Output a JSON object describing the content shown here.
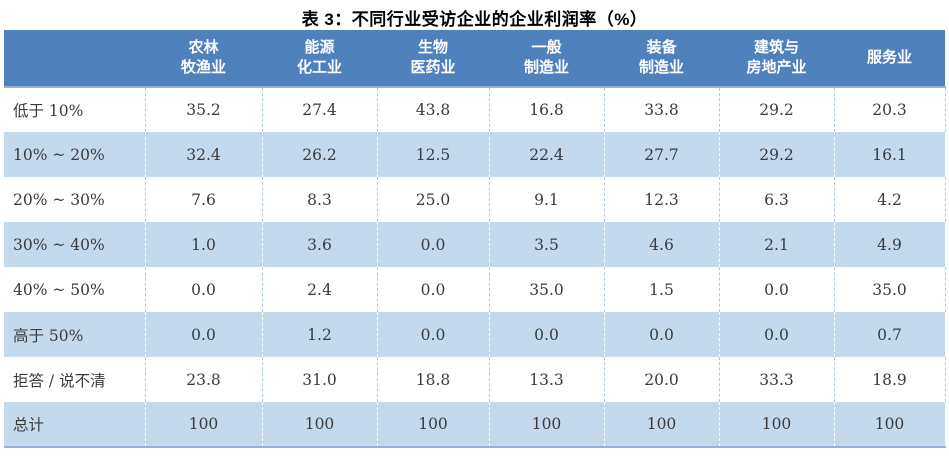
{
  "title": "表 3：不同行业受访企业的企业利润率（%）",
  "table": {
    "corner_label": "",
    "columns": [
      "农林\n牧渔业",
      "能源\n化工业",
      "生物\n医药业",
      "一般\n制造业",
      "装备\n制造业",
      "建筑与\n房地产业",
      "服务业"
    ],
    "rows": [
      {
        "label": "低于 10%",
        "values": [
          "35.2",
          "27.4",
          "43.8",
          "16.8",
          "33.8",
          "29.2",
          "20.3"
        ]
      },
      {
        "label": "10% ~ 20%",
        "values": [
          "32.4",
          "26.2",
          "12.5",
          "22.4",
          "27.7",
          "29.2",
          "16.1"
        ]
      },
      {
        "label": "20% ~ 30%",
        "values": [
          "7.6",
          "8.3",
          "25.0",
          "9.1",
          "12.3",
          "6.3",
          "4.2"
        ]
      },
      {
        "label": "30% ~ 40%",
        "values": [
          "1.0",
          "3.6",
          "0.0",
          "3.5",
          "4.6",
          "2.1",
          "4.9"
        ]
      },
      {
        "label": "40% ~ 50%",
        "values": [
          "0.0",
          "2.4",
          "0.0",
          "35.0",
          "1.5",
          "0.0",
          "35.0"
        ]
      },
      {
        "label": "高于 50%",
        "values": [
          "0.0",
          "1.2",
          "0.0",
          "0.0",
          "0.0",
          "0.0",
          "0.7"
        ]
      },
      {
        "label": "拒答 / 说不清",
        "values": [
          "23.8",
          "31.0",
          "18.8",
          "13.3",
          "20.0",
          "33.3",
          "18.9"
        ]
      },
      {
        "label": "总计",
        "values": [
          "100",
          "100",
          "100",
          "100",
          "100",
          "100",
          "100"
        ]
      }
    ]
  },
  "colors": {
    "header_bg": "#4f81bd",
    "header_text": "#ffffff",
    "row_bg": "#ffffff",
    "row_alt_bg": "#c5d9ed",
    "body_text": "#3b3b3b",
    "divider_on_white": "#aec8e4",
    "divider_on_blue": "#ffffff",
    "table_border": "#95b3d7"
  }
}
